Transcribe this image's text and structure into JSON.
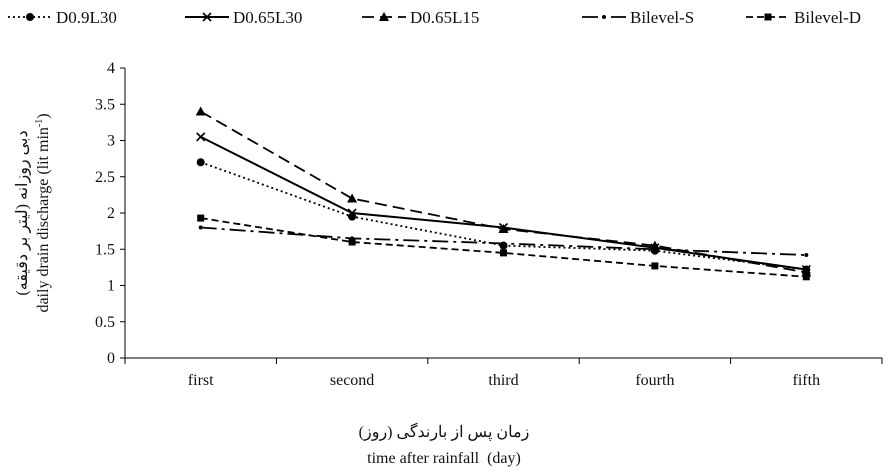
{
  "chart_data": {
    "type": "line",
    "categories": [
      "first",
      "second",
      "third",
      "fourth",
      "fifth"
    ],
    "series": [
      {
        "name": "D0.9L30",
        "values": [
          2.7,
          1.95,
          1.55,
          1.48,
          1.22
        ],
        "style": "dotted",
        "marker": "circle"
      },
      {
        "name": "D0.65L30",
        "values": [
          3.05,
          2.0,
          1.8,
          1.52,
          1.22
        ],
        "style": "solid",
        "marker": "x"
      },
      {
        "name": "D0.65L15",
        "values": [
          3.4,
          2.2,
          1.78,
          1.55,
          1.18
        ],
        "style": "dashed",
        "marker": "triangle"
      },
      {
        "name": "Bilevel-S",
        "values": [
          1.8,
          1.65,
          1.58,
          1.5,
          1.42
        ],
        "style": "dashdot",
        "marker": "dot"
      },
      {
        "name": "Bilevel-D",
        "values": [
          1.93,
          1.6,
          1.45,
          1.27,
          1.12
        ],
        "style": "shortdash",
        "marker": "square"
      }
    ],
    "xlabel_fa": "زمان پس از بارندگی (روز)",
    "xlabel": "time after rainfall  (day)",
    "ylabel_fa": "دبی روزانه (لیتر بر دقیقه)",
    "ylabel": "daily drain discharge (lit min",
    "ylabel_sup": "-1",
    "ylabel_close": ")",
    "ylim": [
      0,
      4
    ],
    "yticks": [
      "0",
      "0.5",
      "1",
      "1.5",
      "2",
      "2.5",
      "3",
      "3.5",
      "4"
    ],
    "grid": false,
    "legend_position": "top"
  }
}
